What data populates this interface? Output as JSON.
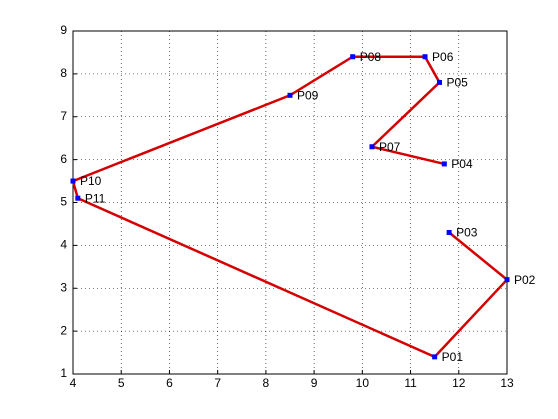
{
  "chart_data": {
    "type": "line",
    "series": [
      {
        "color": "#d40000",
        "marker_color": "#0000ff",
        "labels": [
          "P04",
          "P07",
          "P05",
          "P06",
          "P08",
          "P09",
          "P10",
          "P11",
          "P01",
          "P02",
          "P03"
        ],
        "x": [
          11.7,
          10.2,
          11.6,
          11.3,
          9.8,
          8.5,
          4.0,
          4.1,
          11.5,
          13,
          11.8
        ],
        "values": [
          5.9,
          6.3,
          7.8,
          8.4,
          8.4,
          7.5,
          5.5,
          5.1,
          1.4,
          3.2,
          4.3
        ]
      }
    ],
    "xlim": [
      4,
      13
    ],
    "xticks": [
      4,
      5,
      6,
      7,
      8,
      9,
      10,
      11,
      12,
      13
    ],
    "ylim": [
      1,
      9
    ],
    "yticks": [
      1,
      2,
      3,
      4,
      5,
      6,
      7,
      8,
      9
    ],
    "grid": true
  }
}
